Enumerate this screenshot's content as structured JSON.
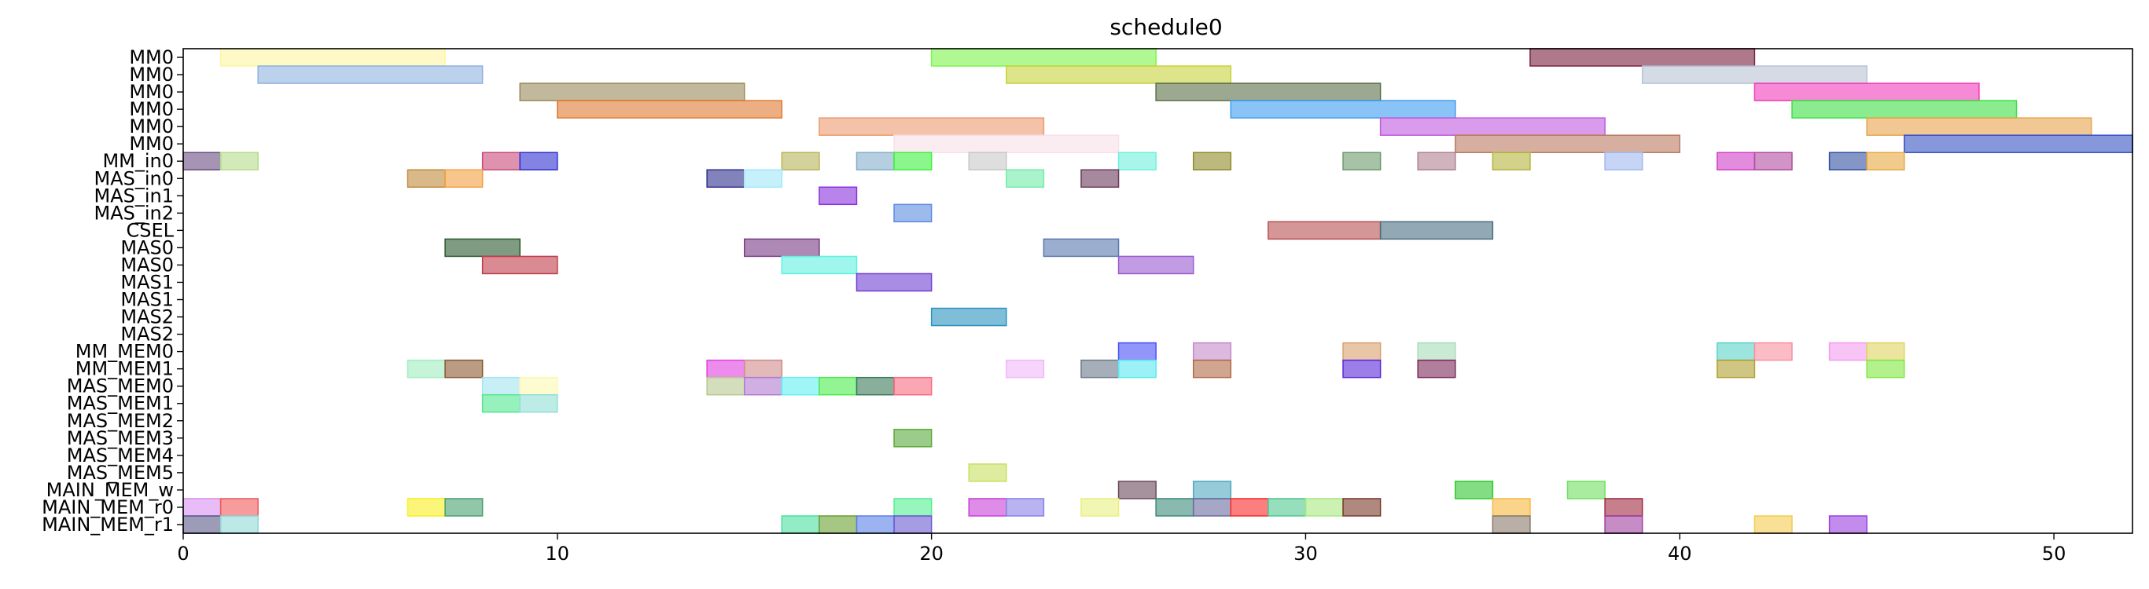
{
  "chart_data": {
    "type": "gantt",
    "title": "schedule0",
    "xlabel": "",
    "ylabel": "",
    "xlim": [
      0,
      52.1
    ],
    "xticks": [
      0,
      10,
      20,
      30,
      40,
      50
    ],
    "grid": false,
    "rows": [
      "MM0",
      "MM0",
      "MM0",
      "MM0",
      "MM0",
      "MM0",
      "MM_in0",
      "MAS_in0",
      "MAS_in1",
      "MAS_in2",
      "CSEL",
      "MAS0",
      "MAS0",
      "MAS1",
      "MAS1",
      "MAS2",
      "MAS2",
      "MM_MEM0",
      "MM_MEM1",
      "MAS_MEM0",
      "MAS_MEM1",
      "MAS_MEM2",
      "MAS_MEM3",
      "MAS_MEM4",
      "MAS_MEM5",
      "MAIN_MEM_w",
      "MAIN_MEM_r0",
      "MAIN_MEM_r1"
    ],
    "bars": [
      {
        "row": 0,
        "start": 1,
        "end": 7,
        "color": "#fdf5a0"
      },
      {
        "row": 0,
        "start": 20,
        "end": 26,
        "color": "#7cf54a"
      },
      {
        "row": 0,
        "start": 36,
        "end": 42,
        "color": "#7a2040"
      },
      {
        "row": 1,
        "start": 2,
        "end": 8,
        "color": "#8fb2e0"
      },
      {
        "row": 1,
        "start": 22,
        "end": 28,
        "color": "#c8d23c"
      },
      {
        "row": 1,
        "start": 39,
        "end": 45,
        "color": "#b7c3d4"
      },
      {
        "row": 2,
        "start": 9,
        "end": 15,
        "color": "#9a8a5a"
      },
      {
        "row": 2,
        "start": 26,
        "end": 32,
        "color": "#5a7046"
      },
      {
        "row": 2,
        "start": 42,
        "end": 48,
        "color": "#f03cba"
      },
      {
        "row": 3,
        "start": 10,
        "end": 16,
        "color": "#e07a30"
      },
      {
        "row": 3,
        "start": 28,
        "end": 34,
        "color": "#3c9cf0"
      },
      {
        "row": 3,
        "start": 43,
        "end": 49,
        "color": "#3ce044"
      },
      {
        "row": 4,
        "start": 17,
        "end": 23,
        "color": "#eb9a6e"
      },
      {
        "row": 4,
        "start": 32,
        "end": 38,
        "color": "#c05ae0"
      },
      {
        "row": 4,
        "start": 45,
        "end": 51,
        "color": "#e8a44c"
      },
      {
        "row": 5,
        "start": 19,
        "end": 25,
        "color": "#f8e0e8"
      },
      {
        "row": 5,
        "start": 34,
        "end": 40,
        "color": "#bb7a60"
      },
      {
        "row": 5,
        "start": 46,
        "end": 52.1,
        "color": "#3652c4"
      },
      {
        "row": 6,
        "start": 0,
        "end": 1,
        "color": "#6a4c82"
      },
      {
        "row": 6,
        "start": 1,
        "end": 2,
        "color": "#b4dc8a"
      },
      {
        "row": 6,
        "start": 8,
        "end": 9,
        "color": "#c84a78"
      },
      {
        "row": 6,
        "start": 9,
        "end": 10,
        "color": "#3030d0"
      },
      {
        "row": 6,
        "start": 16,
        "end": 17,
        "color": "#b8b45a"
      },
      {
        "row": 6,
        "start": 18,
        "end": 19,
        "color": "#84aecb"
      },
      {
        "row": 6,
        "start": 19,
        "end": 20,
        "color": "#3ef03e"
      },
      {
        "row": 6,
        "start": 21,
        "end": 22,
        "color": "#c8c8c8"
      },
      {
        "row": 6,
        "start": 25,
        "end": 26,
        "color": "#6ef0dc"
      },
      {
        "row": 6,
        "start": 27,
        "end": 28,
        "color": "#8e8a28"
      },
      {
        "row": 6,
        "start": 31,
        "end": 32,
        "color": "#6e9a6e"
      },
      {
        "row": 6,
        "start": 33,
        "end": 34,
        "color": "#b08090"
      },
      {
        "row": 6,
        "start": 35,
        "end": 36,
        "color": "#b4b43c"
      },
      {
        "row": 6,
        "start": 38,
        "end": 39,
        "color": "#a0b8f0"
      },
      {
        "row": 6,
        "start": 41,
        "end": 42,
        "color": "#d040c8"
      },
      {
        "row": 6,
        "start": 42,
        "end": 43,
        "color": "#b04ca0"
      },
      {
        "row": 6,
        "start": 44,
        "end": 45,
        "color": "#3050a0"
      },
      {
        "row": 6,
        "start": 45,
        "end": 46,
        "color": "#e8a840"
      },
      {
        "row": 7,
        "start": 6,
        "end": 7,
        "color": "#c08a3a"
      },
      {
        "row": 7,
        "start": 7,
        "end": 8,
        "color": "#f4a040"
      },
      {
        "row": 7,
        "start": 14,
        "end": 15,
        "color": "#303090"
      },
      {
        "row": 7,
        "start": 15,
        "end": 16,
        "color": "#a0e8f8"
      },
      {
        "row": 7,
        "start": 22,
        "end": 23,
        "color": "#72ecaa"
      },
      {
        "row": 7,
        "start": 24,
        "end": 25,
        "color": "#6a3a5a"
      },
      {
        "row": 8,
        "start": 17,
        "end": 18,
        "color": "#8a30e0"
      },
      {
        "row": 9,
        "start": 19,
        "end": 20,
        "color": "#5a8ce0"
      },
      {
        "row": 10,
        "start": 29,
        "end": 32,
        "color": "#b85050"
      },
      {
        "row": 10,
        "start": 32,
        "end": 35,
        "color": "#4a6e80"
      },
      {
        "row": 11,
        "start": 7,
        "end": 9,
        "color": "#2a5a2e"
      },
      {
        "row": 11,
        "start": 15,
        "end": 17,
        "color": "#7a3a86"
      },
      {
        "row": 11,
        "start": 23,
        "end": 25,
        "color": "#5a78b0"
      },
      {
        "row": 12,
        "start": 8,
        "end": 10,
        "color": "#c03c4a"
      },
      {
        "row": 12,
        "start": 16,
        "end": 18,
        "color": "#5ef0e0"
      },
      {
        "row": 12,
        "start": 25,
        "end": 27,
        "color": "#9a5ad0"
      },
      {
        "row": 13,
        "start": 18,
        "end": 20,
        "color": "#7040d0"
      },
      {
        "row": 15,
        "start": 20,
        "end": 22,
        "color": "#2a92c0"
      },
      {
        "row": 17,
        "start": 25,
        "end": 26,
        "color": "#4a50f8"
      },
      {
        "row": 17,
        "start": 27,
        "end": 28,
        "color": "#c48ac8"
      },
      {
        "row": 17,
        "start": 31,
        "end": 32,
        "color": "#dca070"
      },
      {
        "row": 17,
        "start": 33,
        "end": 34,
        "color": "#a8dcb8"
      },
      {
        "row": 17,
        "start": 41,
        "end": 42,
        "color": "#5ad4c8"
      },
      {
        "row": 17,
        "start": 42,
        "end": 43,
        "color": "#f890a0"
      },
      {
        "row": 17,
        "start": 44,
        "end": 45,
        "color": "#f49cf0"
      },
      {
        "row": 17,
        "start": 45,
        "end": 46,
        "color": "#e0d460"
      },
      {
        "row": 18,
        "start": 6,
        "end": 7,
        "color": "#a0ecc0"
      },
      {
        "row": 18,
        "start": 7,
        "end": 8,
        "color": "#8a5a30"
      },
      {
        "row": 18,
        "start": 14,
        "end": 15,
        "color": "#e040e0"
      },
      {
        "row": 18,
        "start": 15,
        "end": 16,
        "color": "#d08a8a"
      },
      {
        "row": 18,
        "start": 22,
        "end": 23,
        "color": "#f0b8f8"
      },
      {
        "row": 18,
        "start": 24,
        "end": 25,
        "color": "#6a7a8a"
      },
      {
        "row": 18,
        "start": 25,
        "end": 26,
        "color": "#5ae8f0"
      },
      {
        "row": 18,
        "start": 27,
        "end": 28,
        "color": "#b06a48"
      },
      {
        "row": 18,
        "start": 31,
        "end": 32,
        "color": "#5a28d8"
      },
      {
        "row": 18,
        "start": 33,
        "end": 34,
        "color": "#7a2a5a"
      },
      {
        "row": 18,
        "start": 41,
        "end": 42,
        "color": "#b0a030"
      },
      {
        "row": 18,
        "start": 45,
        "end": 46,
        "color": "#80e840"
      },
      {
        "row": 19,
        "start": 8,
        "end": 9,
        "color": "#a4e4f0"
      },
      {
        "row": 19,
        "start": 9,
        "end": 10,
        "color": "#fcf8b0"
      },
      {
        "row": 19,
        "start": 14,
        "end": 15,
        "color": "#b8c890"
      },
      {
        "row": 19,
        "start": 15,
        "end": 16,
        "color": "#b07ad0"
      },
      {
        "row": 19,
        "start": 16,
        "end": 17,
        "color": "#60f0f0"
      },
      {
        "row": 19,
        "start": 17,
        "end": 18,
        "color": "#4aec4a"
      },
      {
        "row": 19,
        "start": 18,
        "end": 19,
        "color": "#3a7a5a"
      },
      {
        "row": 19,
        "start": 19,
        "end": 20,
        "color": "#f86a80"
      },
      {
        "row": 20,
        "start": 8,
        "end": 9,
        "color": "#50e890"
      },
      {
        "row": 20,
        "start": 9,
        "end": 10,
        "color": "#90e0d4"
      },
      {
        "row": 22,
        "start": 19,
        "end": 20,
        "color": "#5aaa3a"
      },
      {
        "row": 24,
        "start": 21,
        "end": 22,
        "color": "#c8e060"
      },
      {
        "row": 25,
        "start": 25,
        "end": 26,
        "color": "#6a4a5a"
      },
      {
        "row": 25,
        "start": 27,
        "end": 28,
        "color": "#50a8c0"
      },
      {
        "row": 25,
        "start": 34,
        "end": 35,
        "color": "#30c830"
      },
      {
        "row": 25,
        "start": 37,
        "end": 38,
        "color": "#70e060"
      },
      {
        "row": 26,
        "start": 0,
        "end": 1,
        "color": "#d890f0"
      },
      {
        "row": 26,
        "start": 1,
        "end": 2,
        "color": "#f05a5a"
      },
      {
        "row": 26,
        "start": 6,
        "end": 7,
        "color": "#f8f020"
      },
      {
        "row": 26,
        "start": 7,
        "end": 8,
        "color": "#4aa070"
      },
      {
        "row": 26,
        "start": 19,
        "end": 20,
        "color": "#50f090"
      },
      {
        "row": 26,
        "start": 21,
        "end": 22,
        "color": "#c840d8"
      },
      {
        "row": 26,
        "start": 22,
        "end": 23,
        "color": "#8a80e8"
      },
      {
        "row": 26,
        "start": 24,
        "end": 25,
        "color": "#e8f080"
      },
      {
        "row": 26,
        "start": 26,
        "end": 27,
        "color": "#3a8a7a"
      },
      {
        "row": 26,
        "start": 27,
        "end": 28,
        "color": "#6a6aa0"
      },
      {
        "row": 26,
        "start": 28,
        "end": 29,
        "color": "#f82a2a"
      },
      {
        "row": 26,
        "start": 29,
        "end": 30,
        "color": "#50c890"
      },
      {
        "row": 26,
        "start": 30,
        "end": 31,
        "color": "#a8e880"
      },
      {
        "row": 26,
        "start": 31,
        "end": 32,
        "color": "#7a3a2a"
      },
      {
        "row": 26,
        "start": 35,
        "end": 36,
        "color": "#f8b840"
      },
      {
        "row": 26,
        "start": 38,
        "end": 39,
        "color": "#a02a40"
      },
      {
        "row": 27,
        "start": 0,
        "end": 1,
        "color": "#5a5a8a"
      },
      {
        "row": 27,
        "start": 1,
        "end": 2,
        "color": "#90d8d8"
      },
      {
        "row": 27,
        "start": 16,
        "end": 17,
        "color": "#4ae0a0"
      },
      {
        "row": 27,
        "start": 17,
        "end": 18,
        "color": "#6aa030"
      },
      {
        "row": 27,
        "start": 18,
        "end": 19,
        "color": "#5a80e8"
      },
      {
        "row": 27,
        "start": 19,
        "end": 20,
        "color": "#6a5ad0"
      },
      {
        "row": 27,
        "start": 35,
        "end": 36,
        "color": "#8a7a6a"
      },
      {
        "row": 27,
        "start": 38,
        "end": 39,
        "color": "#a040a0"
      },
      {
        "row": 27,
        "start": 42,
        "end": 43,
        "color": "#f4cc50"
      },
      {
        "row": 27,
        "start": 44,
        "end": 45,
        "color": "#9a40e0"
      }
    ]
  }
}
